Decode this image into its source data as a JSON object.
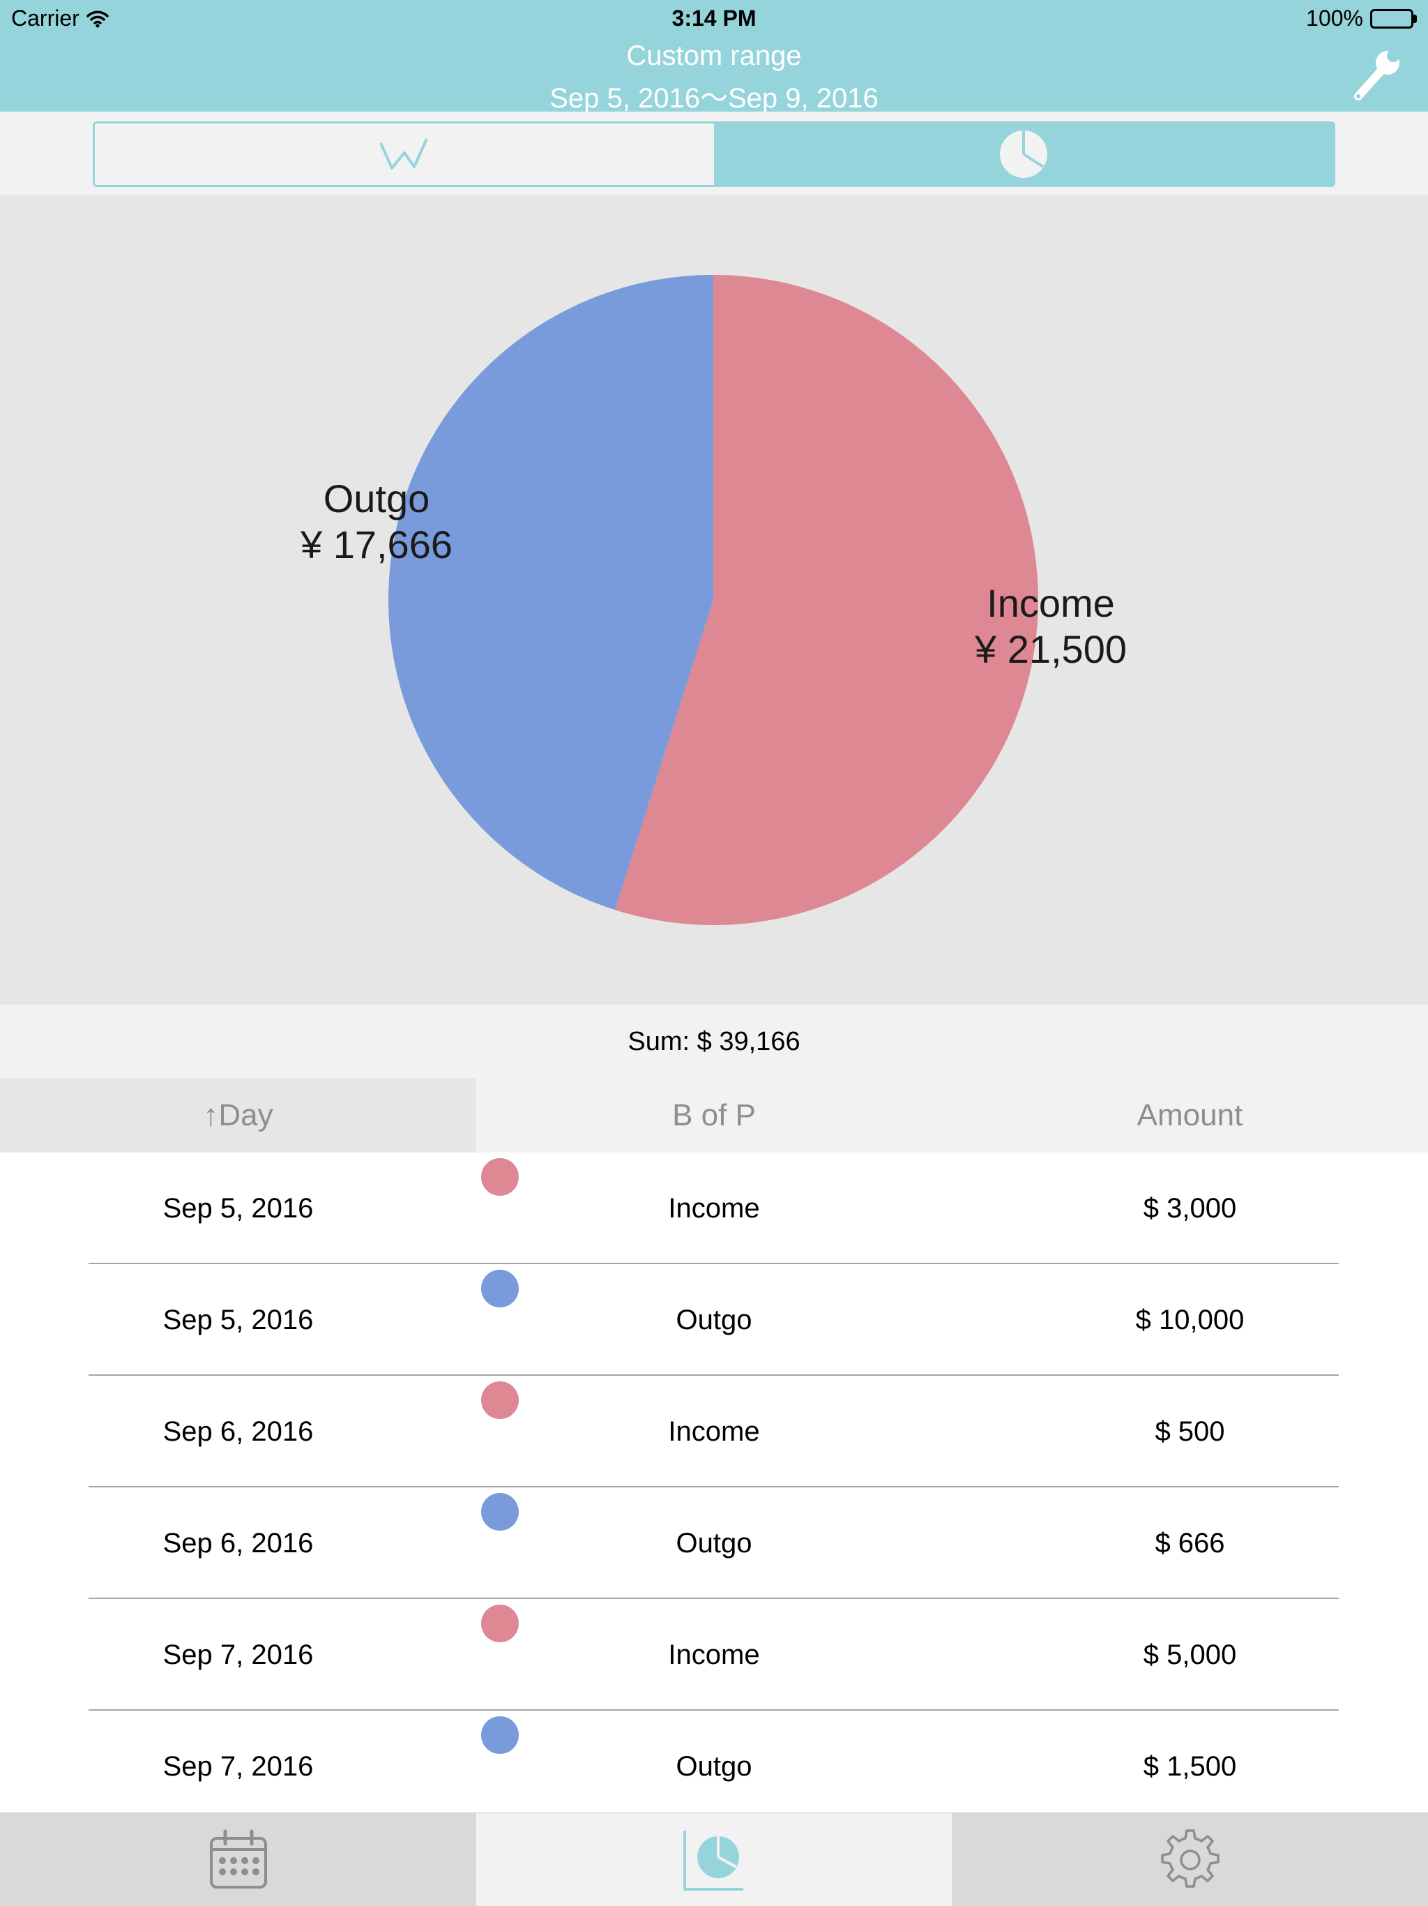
{
  "status_bar": {
    "carrier": "Carrier",
    "time": "3:14 PM",
    "battery": "100%"
  },
  "header": {
    "title": "Custom range",
    "date_range": "Sep 5, 2016～Sep 9, 2016",
    "settings_icon": "wrench-icon"
  },
  "segmented_control": {
    "options": [
      "line-chart-icon",
      "pie-chart-icon"
    ],
    "selected": "pie-chart-icon"
  },
  "colors": {
    "accent": "#95d4da",
    "income": "#dd8893",
    "outgo": "#799bdb",
    "chart_background": "#e6e6e6"
  },
  "chart_data": {
    "type": "pie",
    "slices": [
      {
        "label": "Income",
        "value": 21500,
        "value_label": "¥ 21,500",
        "color": "#dd8893"
      },
      {
        "label": "Outgo",
        "value": 17666,
        "value_label": "¥ 17,666",
        "color": "#799bdb"
      }
    ],
    "start_angle": "12 o'clock",
    "direction": "clockwise"
  },
  "sum": {
    "label": "Sum:  $  39,166"
  },
  "table": {
    "columns": [
      "↑Day",
      "B of P",
      "Amount"
    ],
    "rows": [
      {
        "day": "Sep 5, 2016",
        "type": "Income",
        "amount": "$  3,000",
        "color": "#dd8893"
      },
      {
        "day": "Sep 5, 2016",
        "type": "Outgo",
        "amount": "$  10,000",
        "color": "#799bdb"
      },
      {
        "day": "Sep 6, 2016",
        "type": "Income",
        "amount": "$  500",
        "color": "#dd8893"
      },
      {
        "day": "Sep 6, 2016",
        "type": "Outgo",
        "amount": "$  666",
        "color": "#799bdb"
      },
      {
        "day": "Sep 7, 2016",
        "type": "Income",
        "amount": "$  5,000",
        "color": "#dd8893"
      },
      {
        "day": "Sep 7, 2016",
        "type": "Outgo",
        "amount": "$  1,500",
        "color": "#799bdb"
      }
    ]
  },
  "tab_bar": {
    "items": [
      "calendar-icon",
      "chart-icon",
      "settings-gear-icon"
    ],
    "selected": "chart-icon"
  }
}
